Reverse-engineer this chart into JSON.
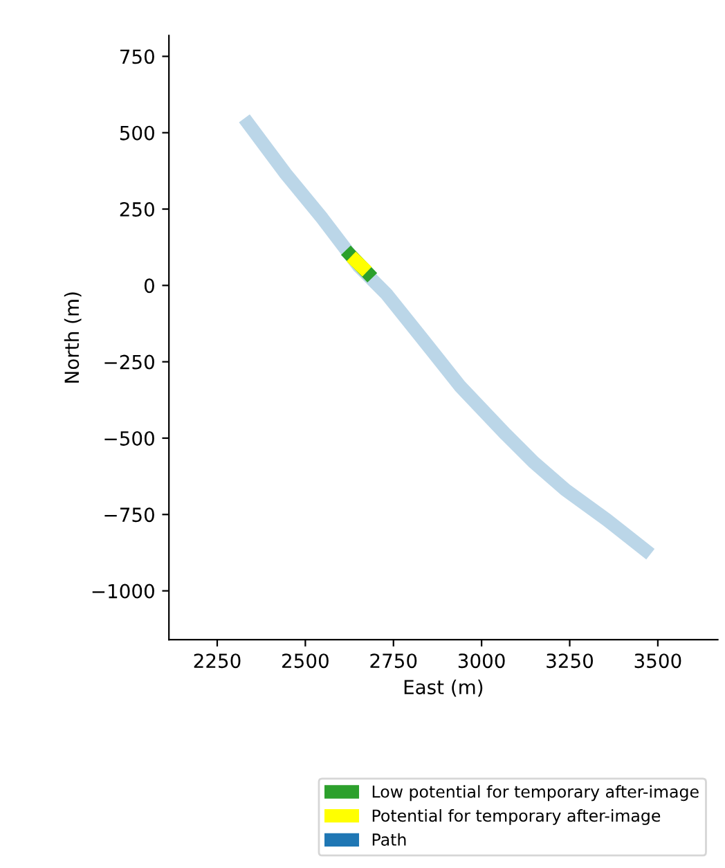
{
  "chart_data": {
    "type": "line",
    "xlabel": "East (m)",
    "ylabel": "North (m)",
    "xlim": [
      2113,
      3670
    ],
    "xticks": [
      2250,
      2500,
      2750,
      3000,
      3250,
      3500
    ],
    "ylim": [
      -1160,
      818
    ],
    "yticks": [
      -1000,
      -750,
      -500,
      -250,
      0,
      250,
      500,
      750
    ],
    "series": [
      {
        "name": "Low potential for temporary after-image",
        "color": "#2ca02c",
        "x": [
          2615,
          2690
        ],
        "values": [
          115,
          25
        ]
      },
      {
        "name": "Potential for temporary after-image",
        "color": "#ffff00",
        "x": [
          2630,
          2675
        ],
        "values": [
          95,
          45
        ]
      },
      {
        "name": "Path",
        "color": "#1f77b4",
        "x": [
          2327,
          2444,
          2548,
          2652,
          2730,
          2835,
          2939,
          3069,
          3147,
          3238,
          3355,
          3479
        ],
        "values": [
          547,
          366,
          220,
          62,
          -28,
          -179,
          -330,
          -488,
          -578,
          -669,
          -767,
          -880
        ]
      }
    ],
    "legend": "bottom",
    "grid": false,
    "marker": "none",
    "line_style": "solid"
  }
}
